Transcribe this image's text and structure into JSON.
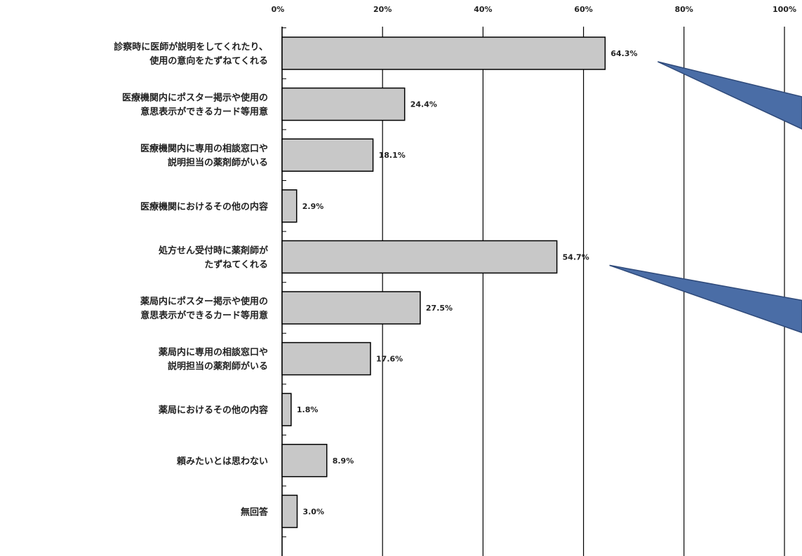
{
  "chart_data": {
    "type": "bar",
    "orientation": "horizontal",
    "xlim": [
      0,
      100
    ],
    "ticks": [
      "0%",
      "20%",
      "40%",
      "60%",
      "80%",
      "100%"
    ],
    "grid": true,
    "categories": [
      [
        "診察時に医師が説明をしてくれたり、",
        "使用の意向をたずねてくれる"
      ],
      [
        "医療機関内にポスター掲示や使用の",
        "意思表示ができるカード等用意"
      ],
      [
        "医療機関内に専用の相談窓口や",
        "説明担当の薬剤師がいる"
      ],
      [
        "医療機関におけるその他の内容"
      ],
      [
        "処方せん受付時に薬剤師が",
        "たずねてくれる"
      ],
      [
        "薬局内にポスター掲示や使用の",
        "意思表示ができるカード等用意"
      ],
      [
        "薬局内に専用の相談窓口や",
        "説明担当の薬剤師がいる"
      ],
      [
        "薬局におけるその他の内容"
      ],
      [
        "頼みたいとは思わない"
      ],
      [
        "無回答"
      ]
    ],
    "values": [
      64.3,
      24.4,
      18.1,
      2.9,
      54.7,
      27.5,
      17.6,
      1.8,
      8.9,
      3.0
    ],
    "value_labels": [
      "64.3%",
      "24.4%",
      "18.1%",
      "2.9%",
      "54.7%",
      "27.5%",
      "17.6%",
      "1.8%",
      "8.9%",
      "3.0%"
    ],
    "highlighted_indices": [
      0,
      4
    ],
    "colors": {
      "bar": "#c8c8c8",
      "bar_stroke": "#000000",
      "callout": "#4a6da6",
      "callout_dark": "#2f4a7a"
    }
  }
}
